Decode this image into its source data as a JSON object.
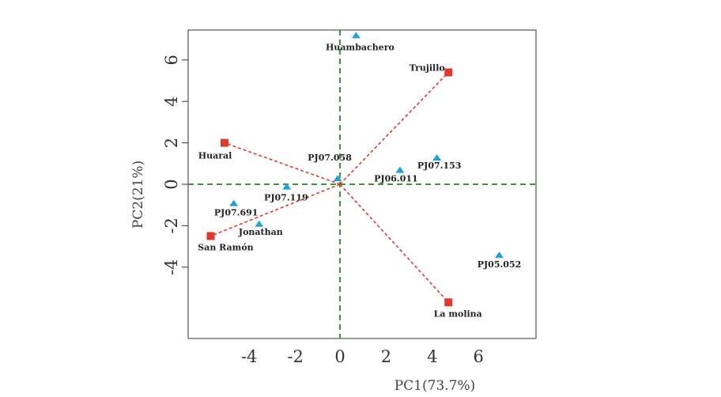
{
  "chart_data": {
    "type": "scatter",
    "xlabel": "PC1(73.7%)",
    "ylabel": "PC2(21%)",
    "xlim": [
      -6.5,
      8.5
    ],
    "ylim": [
      -7.4,
      7.4
    ],
    "x_ticks": [
      -4,
      -2,
      0,
      2,
      4,
      6
    ],
    "y_ticks": [
      -4,
      -2,
      0,
      2,
      4,
      6
    ],
    "grid": false,
    "reference_lines": {
      "x": 0,
      "y": 0,
      "color": "#3a9a3a",
      "style": "dashed"
    },
    "series": [
      {
        "marker": "triangle",
        "color": "#1fa3d8",
        "points": [
          {
            "label": "Huambachero",
            "x": 0.7,
            "y": 7.2
          },
          {
            "label": "PJ07.058",
            "x": -0.1,
            "y": 0.3
          },
          {
            "label": "PJ07.153",
            "x": 4.2,
            "y": 1.3
          },
          {
            "label": "PJ06.011",
            "x": 2.6,
            "y": 0.7
          },
          {
            "label": "PJ07.119",
            "x": -2.3,
            "y": -0.1
          },
          {
            "label": "PJ07.691",
            "x": -4.6,
            "y": -0.9
          },
          {
            "label": "Jonathan",
            "x": -3.5,
            "y": -1.9
          },
          {
            "label": "PJ05.052",
            "x": 6.9,
            "y": -3.4
          }
        ]
      },
      {
        "marker": "square",
        "color": "#e03a2e",
        "vectors": true,
        "points": [
          {
            "label": "Trujillo",
            "x": 4.7,
            "y": 5.4
          },
          {
            "label": "Huaral",
            "x": -5.0,
            "y": 2.0
          },
          {
            "label": "San Ramón",
            "x": -5.6,
            "y": -2.5
          },
          {
            "label": "La molina",
            "x": 4.7,
            "y": -5.7
          }
        ]
      }
    ]
  }
}
